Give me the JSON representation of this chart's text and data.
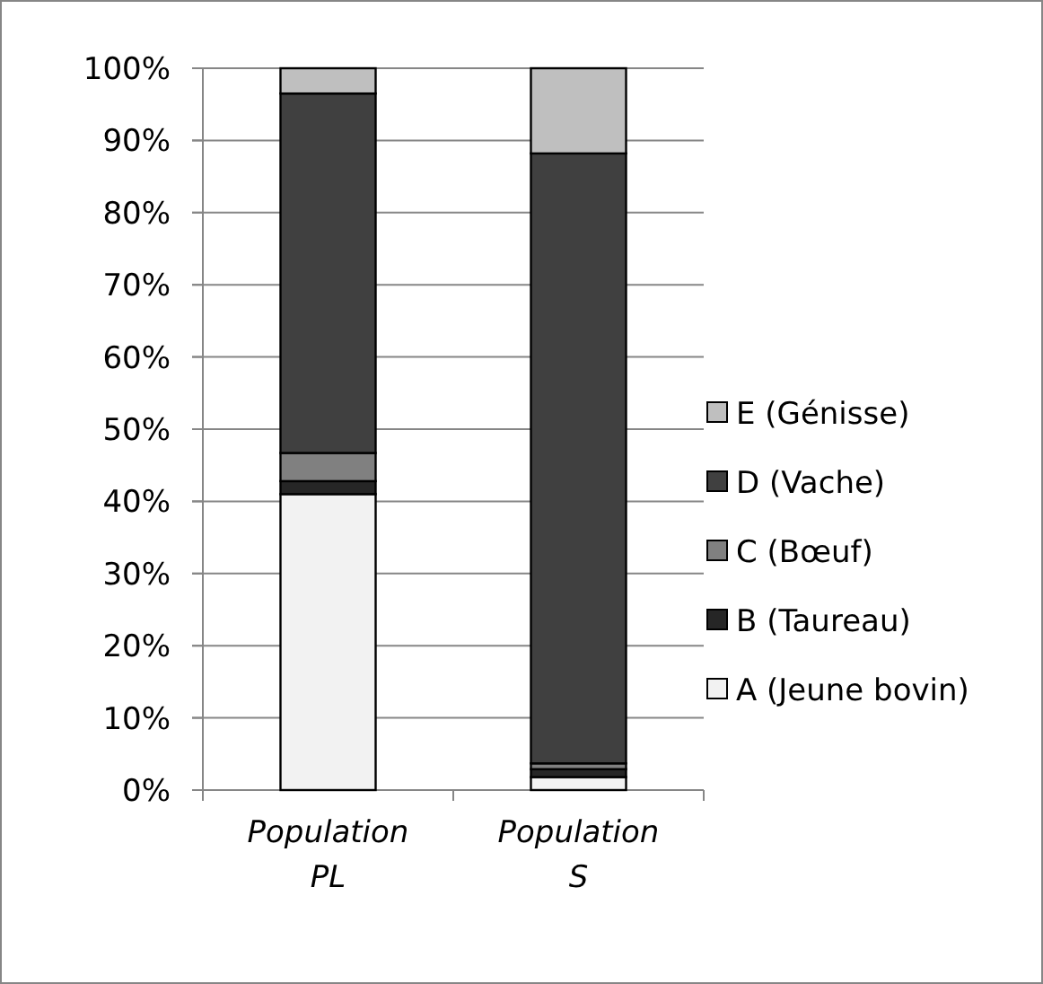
{
  "chart_data": {
    "type": "bar",
    "stacked": true,
    "categories": [
      "Population PL",
      "Population S"
    ],
    "series": [
      {
        "name": "A (Jeune bovin)",
        "color": "#f2f2f2",
        "values": [
          41,
          1.8
        ]
      },
      {
        "name": "B (Taureau)",
        "color": "#262626",
        "values": [
          1.8,
          1.1
        ]
      },
      {
        "name": "C (Bœuf)",
        "color": "#808080",
        "values": [
          3.9,
          0.8
        ]
      },
      {
        "name": "D (Vache)",
        "color": "#404040",
        "values": [
          49.8,
          84.5
        ]
      },
      {
        "name": "E (Génisse)",
        "color": "#bfbfbf",
        "values": [
          3.5,
          11.8
        ]
      }
    ],
    "ylim": [
      0,
      100
    ],
    "yticks": [
      {
        "value": 0,
        "label": "0%"
      },
      {
        "value": 10,
        "label": "10%"
      },
      {
        "value": 20,
        "label": "20%"
      },
      {
        "value": 30,
        "label": "30%"
      },
      {
        "value": 40,
        "label": "40%"
      },
      {
        "value": 50,
        "label": "50%"
      },
      {
        "value": 60,
        "label": "60%"
      },
      {
        "value": 70,
        "label": "70%"
      },
      {
        "value": 80,
        "label": "80%"
      },
      {
        "value": 90,
        "label": "90%"
      },
      {
        "value": 100,
        "label": "100%"
      }
    ],
    "grid": "y",
    "legend": "right"
  }
}
